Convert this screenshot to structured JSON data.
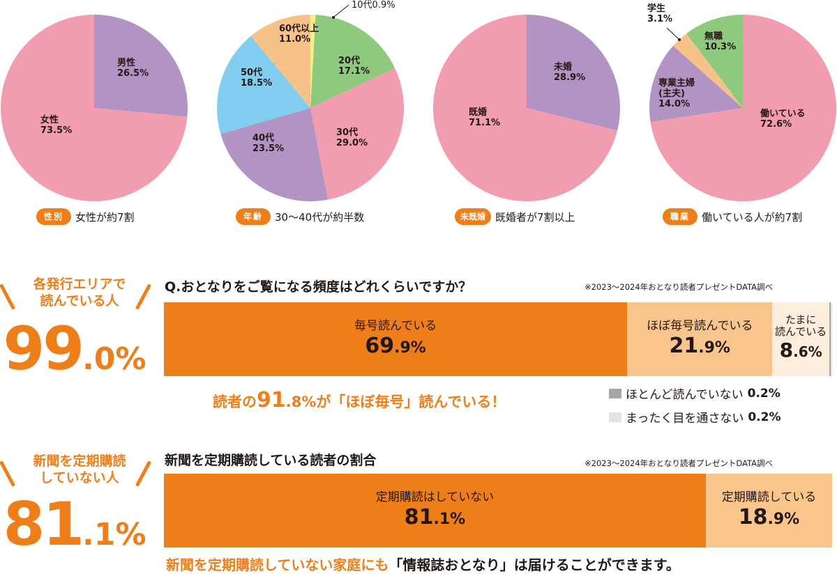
{
  "colors": {
    "accent": "#ee7e19",
    "accent_light": "#f8c58c",
    "accent_pale": "#fdeedd",
    "pink": "#f19daf",
    "purple": "#b193c4",
    "green": "#8ec97e",
    "blue": "#80cdf0",
    "peach": "#f7c28a",
    "yellow": "#fbef7e",
    "gray_dark": "#a6a6a6",
    "gray_light": "#e3e3e3"
  },
  "chart_data": [
    {
      "type": "pie",
      "title": "性別",
      "caption": "女性が約7割",
      "slices": [
        {
          "label": "男性",
          "value": 26.5,
          "value_text": "26.5%",
          "color": "#b193c4"
        },
        {
          "label": "女性",
          "value": 73.5,
          "value_text": "73.5%",
          "color": "#f19daf"
        }
      ]
    },
    {
      "type": "pie",
      "title": "年齢",
      "caption": "30〜40代が約半数",
      "slices": [
        {
          "label": "10代",
          "value": 0.9,
          "value_text": "0.9%",
          "color": "#fbef7e"
        },
        {
          "label": "20代",
          "value": 17.1,
          "value_text": "17.1%",
          "color": "#8ec97e"
        },
        {
          "label": "30代",
          "value": 29.0,
          "value_text": "29.0%",
          "color": "#f19daf"
        },
        {
          "label": "40代",
          "value": 23.5,
          "value_text": "23.5%",
          "color": "#b193c4"
        },
        {
          "label": "50代",
          "value": 18.5,
          "value_text": "18.5%",
          "color": "#80cdf0"
        },
        {
          "label": "60代以上",
          "value": 11.0,
          "value_text": "11.0%",
          "color": "#f7c28a"
        }
      ]
    },
    {
      "type": "pie",
      "title": "未既婚",
      "caption": "既婚者が7割以上",
      "slices": [
        {
          "label": "未婚",
          "value": 28.9,
          "value_text": "28.9%",
          "color": "#b193c4"
        },
        {
          "label": "既婚",
          "value": 71.1,
          "value_text": "71.1%",
          "color": "#f19daf"
        }
      ]
    },
    {
      "type": "pie",
      "title": "職業",
      "caption": "働いている人が約7割",
      "slices": [
        {
          "label": "働いている",
          "value": 72.6,
          "value_text": "72.6%",
          "color": "#f19daf"
        },
        {
          "label": "専業主婦",
          "label2": "(主夫)",
          "value": 14.0,
          "value_text": "14.0%",
          "color": "#b193c4"
        },
        {
          "label": "学生",
          "value": 3.1,
          "value_text": "3.1%",
          "color": "#f7c28a"
        },
        {
          "label": "無職",
          "value": 10.3,
          "value_text": "10.3%",
          "color": "#8ec97e"
        }
      ]
    },
    {
      "type": "bar",
      "orientation": "horizontal-stacked",
      "title": "Q.おとなりをご覧になる頻度はどれくらいですか？",
      "note": "※2023〜2024年おとなり読者プレゼントDATA調べ",
      "segments": [
        {
          "label": "毎号読んでいる",
          "value": 69.9,
          "int": "69",
          "dec": ".9%",
          "color": "#ee7e19"
        },
        {
          "label": "ほぼ毎号読んでいる",
          "value": 21.9,
          "int": "21",
          "dec": ".9%",
          "color": "#f8c58c"
        },
        {
          "label": "たまに",
          "label2": "読んでいる",
          "value": 8.6,
          "int": "8",
          "dec": ".6%",
          "color": "#fdeedd"
        },
        {
          "label": "ほとんど読んでいない",
          "value": 0.2,
          "value_text": "0.2%",
          "color": "#a6a6a6"
        },
        {
          "label": "まったく目を通さない",
          "value": 0.2,
          "value_text": "0.2%",
          "color": "#e3e3e3"
        }
      ]
    },
    {
      "type": "bar",
      "orientation": "horizontal-stacked",
      "title": "新聞を定期購読している読者の割合",
      "note": "※2023〜2024年おとなり読者プレゼントDATA調べ",
      "segments": [
        {
          "label": "定期購読はしていない",
          "value": 81.1,
          "int": "81",
          "dec": ".1%",
          "color": "#ee7e19"
        },
        {
          "label": "定期購読している",
          "value": 18.9,
          "int": "18",
          "dec": ".9%",
          "color": "#f8c58c"
        }
      ]
    }
  ],
  "pie_callouts": {
    "age_teen": "10代0.9%"
  },
  "stat_area": {
    "lead_1": "各発行エリアで",
    "lead_2": "読んでいる人",
    "int": "99",
    "dec": ".0%"
  },
  "stat_news": {
    "lead_1": "新聞を定期購読",
    "lead_2": "していない人",
    "int": "81",
    "dec": ".1%"
  },
  "highlight": {
    "pre": "読者の",
    "num": "91",
    "post": ".8%が「ほぼ毎号」読んでいる！"
  },
  "footer": {
    "orange": "新聞を定期購読していない家庭にも",
    "dark": "「情報誌おとなり」は届けることができます。"
  }
}
